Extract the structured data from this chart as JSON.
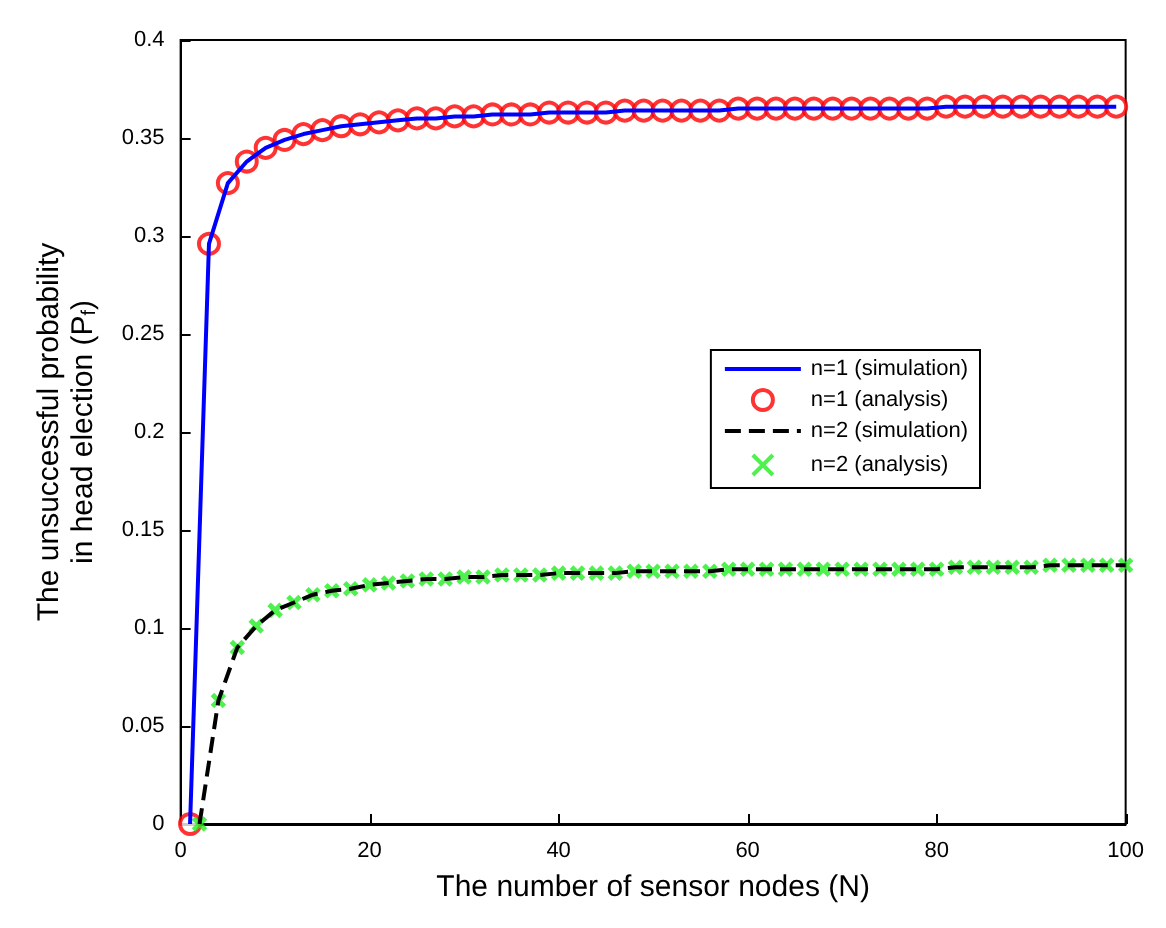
{
  "chart_data": {
    "type": "line",
    "xlabel": "The number of sensor nodes (N)",
    "ylabel": "The unsuccessful probability\nin head election (P$_{f}$)",
    "xlim": [
      0,
      100
    ],
    "xticks": [
      0,
      20,
      40,
      60,
      80,
      100
    ],
    "ylim": [
      0,
      0.4
    ],
    "yticks": [
      0,
      0.05,
      0.1,
      0.15,
      0.2,
      0.25,
      0.3,
      0.35,
      0.4
    ],
    "grid": false,
    "legend": "right",
    "series": [
      {
        "name": "n=1 (simulation)",
        "color": "#0000ff",
        "line_style": "solid",
        "marker": "none",
        "x": [
          1,
          3,
          5,
          7,
          9,
          11,
          13,
          15,
          17,
          19,
          21,
          23,
          25,
          27,
          29,
          31,
          33,
          35,
          37,
          39,
          41,
          43,
          45,
          47,
          49,
          51,
          53,
          55,
          57,
          59,
          61,
          63,
          65,
          67,
          69,
          71,
          73,
          75,
          77,
          79,
          81,
          83,
          85,
          87,
          89,
          91,
          93,
          95,
          97,
          99
        ],
        "values": [
          0,
          0.296,
          0.327,
          0.338,
          0.345,
          0.349,
          0.352,
          0.354,
          0.356,
          0.357,
          0.358,
          0.359,
          0.36,
          0.36,
          0.361,
          0.361,
          0.362,
          0.362,
          0.362,
          0.363,
          0.363,
          0.363,
          0.363,
          0.364,
          0.364,
          0.364,
          0.364,
          0.364,
          0.364,
          0.365,
          0.365,
          0.365,
          0.365,
          0.365,
          0.365,
          0.365,
          0.365,
          0.365,
          0.365,
          0.365,
          0.366,
          0.366,
          0.366,
          0.366,
          0.366,
          0.366,
          0.366,
          0.366,
          0.366,
          0.366
        ]
      },
      {
        "name": "n=1 (analysis)",
        "type": "scatter",
        "color": "#ff0000",
        "marker": "circle",
        "x": [
          1,
          3,
          5,
          7,
          9,
          11,
          13,
          15,
          17,
          19,
          21,
          23,
          25,
          27,
          29,
          31,
          33,
          35,
          37,
          39,
          41,
          43,
          45,
          47,
          49,
          51,
          53,
          55,
          57,
          59,
          61,
          63,
          65,
          67,
          69,
          71,
          73,
          75,
          77,
          79,
          81,
          83,
          85,
          87,
          89,
          91,
          93,
          95,
          97,
          99
        ],
        "values": [
          0,
          0.296,
          0.327,
          0.338,
          0.345,
          0.349,
          0.352,
          0.354,
          0.356,
          0.357,
          0.358,
          0.359,
          0.36,
          0.36,
          0.361,
          0.361,
          0.362,
          0.362,
          0.362,
          0.363,
          0.363,
          0.363,
          0.363,
          0.364,
          0.364,
          0.364,
          0.364,
          0.364,
          0.364,
          0.365,
          0.365,
          0.365,
          0.365,
          0.365,
          0.365,
          0.365,
          0.365,
          0.365,
          0.365,
          0.365,
          0.366,
          0.366,
          0.366,
          0.366,
          0.366,
          0.366,
          0.366,
          0.366,
          0.366,
          0.366
        ]
      },
      {
        "name": "n=2 (simulation)",
        "color": "#000000",
        "line_style": "dashed",
        "marker": "none",
        "x": [
          2,
          4,
          6,
          8,
          10,
          12,
          14,
          16,
          18,
          20,
          22,
          24,
          26,
          28,
          30,
          32,
          34,
          36,
          38,
          40,
          42,
          44,
          46,
          48,
          50,
          52,
          54,
          56,
          58,
          60,
          62,
          64,
          66,
          68,
          70,
          72,
          74,
          76,
          78,
          80,
          82,
          84,
          86,
          88,
          90,
          92,
          94,
          96,
          98,
          100
        ],
        "values": [
          0,
          0.063,
          0.09,
          0.101,
          0.109,
          0.113,
          0.117,
          0.119,
          0.12,
          0.122,
          0.123,
          0.124,
          0.125,
          0.125,
          0.126,
          0.126,
          0.127,
          0.127,
          0.127,
          0.128,
          0.128,
          0.128,
          0.128,
          0.129,
          0.129,
          0.129,
          0.129,
          0.129,
          0.13,
          0.13,
          0.13,
          0.13,
          0.13,
          0.13,
          0.13,
          0.13,
          0.13,
          0.13,
          0.13,
          0.13,
          0.131,
          0.131,
          0.131,
          0.131,
          0.131,
          0.132,
          0.132,
          0.132,
          0.132,
          0.132
        ]
      },
      {
        "name": "n=2 (analysis)",
        "type": "scatter",
        "color": "#22ee22",
        "marker": "cross",
        "x": [
          2,
          4,
          6,
          8,
          10,
          12,
          14,
          16,
          18,
          20,
          22,
          24,
          26,
          28,
          30,
          32,
          34,
          36,
          38,
          40,
          42,
          44,
          46,
          48,
          50,
          52,
          54,
          56,
          58,
          60,
          62,
          64,
          66,
          68,
          70,
          72,
          74,
          76,
          78,
          80,
          82,
          84,
          86,
          88,
          90,
          92,
          94,
          96,
          98,
          100
        ],
        "values": [
          0,
          0.063,
          0.09,
          0.101,
          0.109,
          0.113,
          0.117,
          0.119,
          0.12,
          0.122,
          0.123,
          0.124,
          0.125,
          0.125,
          0.126,
          0.126,
          0.127,
          0.127,
          0.127,
          0.128,
          0.128,
          0.128,
          0.128,
          0.129,
          0.129,
          0.129,
          0.129,
          0.129,
          0.13,
          0.13,
          0.13,
          0.13,
          0.13,
          0.13,
          0.13,
          0.13,
          0.13,
          0.13,
          0.13,
          0.13,
          0.131,
          0.131,
          0.131,
          0.131,
          0.131,
          0.132,
          0.132,
          0.132,
          0.132,
          0.132
        ]
      }
    ]
  }
}
